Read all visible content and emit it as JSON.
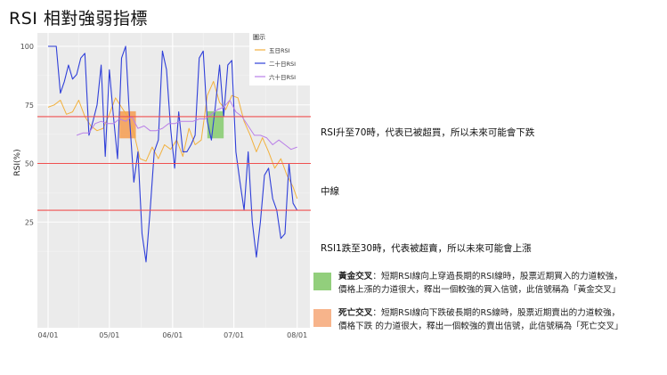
{
  "title": "RSI 相對強弱指標",
  "chart_data": {
    "type": "line",
    "title": "",
    "xlabel": "",
    "ylabel": "RSI(%)",
    "ylim": [
      0,
      100
    ],
    "yticks": [
      25,
      50,
      75,
      100
    ],
    "x_tick_labels": [
      "04/01",
      "05/01",
      "06/01",
      "07/01",
      "08/01"
    ],
    "x_range": [
      "2019-04-01",
      "2019-08-02"
    ],
    "grid": true,
    "legend": {
      "title": "圖示",
      "position": "top-right-inside"
    },
    "reference_lines": [
      {
        "y": 70,
        "label": "RSI升至70時，代表已被超買，所以未來可能會下跌",
        "color": "#f05050"
      },
      {
        "y": 50,
        "label": "中線",
        "color": "#f05050"
      },
      {
        "y": 30,
        "label": "RSI1跌至30時，代表被超賣，所以未來可能會上漲",
        "color": "#f05050"
      }
    ],
    "highlights": [
      {
        "x0": "2019-05-06",
        "x1": "2019-05-14",
        "y0": 63,
        "y1": 70,
        "color": "#f4a460"
      },
      {
        "x0": "2019-06-18",
        "x1": "2019-06-26",
        "y0": 63,
        "y1": 70,
        "color": "#8fcf7a"
      }
    ],
    "series": [
      {
        "name": "五日RSI",
        "color": "#f2b13e",
        "x": [
          "2019-04-01",
          "2019-04-04",
          "2019-04-07",
          "2019-04-10",
          "2019-04-13",
          "2019-04-16",
          "2019-04-19",
          "2019-04-22",
          "2019-04-25",
          "2019-04-28",
          "2019-05-01",
          "2019-05-04",
          "2019-05-07",
          "2019-05-10",
          "2019-05-13",
          "2019-05-16",
          "2019-05-19",
          "2019-05-22",
          "2019-05-25",
          "2019-05-28",
          "2019-05-31",
          "2019-06-03",
          "2019-06-06",
          "2019-06-09",
          "2019-06-12",
          "2019-06-15",
          "2019-06-18",
          "2019-06-21",
          "2019-06-24",
          "2019-06-27",
          "2019-06-30",
          "2019-07-03",
          "2019-07-06",
          "2019-07-09",
          "2019-07-12",
          "2019-07-15",
          "2019-07-18",
          "2019-07-21",
          "2019-07-24",
          "2019-07-27",
          "2019-07-30",
          "2019-08-01"
        ],
        "values": [
          74,
          75,
          77,
          71,
          72,
          77,
          70,
          66,
          64,
          65,
          71,
          78,
          74,
          70,
          63,
          52,
          51,
          57,
          52,
          58,
          56,
          60,
          53,
          65,
          58,
          60,
          79,
          85,
          76,
          73,
          79,
          78,
          68,
          62,
          55,
          61,
          55,
          48,
          52,
          45,
          40,
          35
        ]
      },
      {
        "name": "二十日RSI",
        "color": "#2f3fd9",
        "x": [
          "2019-04-01",
          "2019-04-03",
          "2019-04-05",
          "2019-04-07",
          "2019-04-09",
          "2019-04-11",
          "2019-04-13",
          "2019-04-15",
          "2019-04-17",
          "2019-04-19",
          "2019-04-21",
          "2019-04-23",
          "2019-04-25",
          "2019-04-27",
          "2019-04-29",
          "2019-05-01",
          "2019-05-03",
          "2019-05-05",
          "2019-05-07",
          "2019-05-09",
          "2019-05-11",
          "2019-05-13",
          "2019-05-15",
          "2019-05-17",
          "2019-05-19",
          "2019-05-21",
          "2019-05-23",
          "2019-05-25",
          "2019-05-27",
          "2019-05-29",
          "2019-05-31",
          "2019-06-02",
          "2019-06-04",
          "2019-06-06",
          "2019-06-08",
          "2019-06-10",
          "2019-06-12",
          "2019-06-14",
          "2019-06-16",
          "2019-06-18",
          "2019-06-20",
          "2019-06-22",
          "2019-06-24",
          "2019-06-26",
          "2019-06-28",
          "2019-06-30",
          "2019-07-02",
          "2019-07-04",
          "2019-07-06",
          "2019-07-08",
          "2019-07-10",
          "2019-07-12",
          "2019-07-14",
          "2019-07-16",
          "2019-07-18",
          "2019-07-20",
          "2019-07-22",
          "2019-07-24",
          "2019-07-26",
          "2019-07-28",
          "2019-07-30",
          "2019-08-01"
        ],
        "values": [
          100,
          100,
          100,
          80,
          85,
          92,
          86,
          88,
          95,
          97,
          62,
          68,
          75,
          92,
          53,
          90,
          70,
          52,
          95,
          100,
          68,
          42,
          55,
          20,
          8,
          30,
          55,
          60,
          98,
          90,
          65,
          48,
          72,
          55,
          55,
          58,
          62,
          95,
          98,
          68,
          60,
          75,
          92,
          70,
          92,
          94,
          55,
          42,
          30,
          55,
          25,
          10,
          25,
          45,
          48,
          35,
          30,
          18,
          20,
          50,
          33,
          30
        ]
      },
      {
        "name": "六十日RSI",
        "color": "#b97fe8",
        "x": [
          "2019-04-15",
          "2019-04-18",
          "2019-04-21",
          "2019-04-24",
          "2019-04-27",
          "2019-04-30",
          "2019-05-03",
          "2019-05-06",
          "2019-05-09",
          "2019-05-12",
          "2019-05-15",
          "2019-05-18",
          "2019-05-21",
          "2019-05-24",
          "2019-05-27",
          "2019-05-30",
          "2019-06-02",
          "2019-06-05",
          "2019-06-08",
          "2019-06-11",
          "2019-06-14",
          "2019-06-17",
          "2019-06-20",
          "2019-06-23",
          "2019-06-26",
          "2019-06-29",
          "2019-07-02",
          "2019-07-05",
          "2019-07-08",
          "2019-07-11",
          "2019-07-14",
          "2019-07-17",
          "2019-07-20",
          "2019-07-23",
          "2019-07-26",
          "2019-07-29",
          "2019-08-01"
        ],
        "values": [
          62,
          63,
          63,
          67,
          68,
          67,
          67,
          69,
          68,
          70,
          65,
          66,
          64,
          64,
          65,
          67,
          67,
          68,
          68,
          68,
          69,
          69,
          71,
          73,
          74,
          77,
          72,
          70,
          66,
          62,
          62,
          61,
          58,
          60,
          58,
          56,
          57
        ]
      }
    ]
  },
  "notes": [
    {
      "term": "黃金交叉",
      "line1": "：短期RSI線向上穿過長期的RSI線時，股票近期買入的力道較強，",
      "line2": "價格上漲的力道很大，釋出一個較強的買入信號，此信號稱為「黃金交叉」",
      "color": "#92cf7c"
    },
    {
      "term": "死亡交叉",
      "line1": "：短期RSI線向下跌破長期的RS線時，股票近期賣出的力道較強，",
      "line2": "價格下跌 的力道很大，釋出一個較強的賣出信號，此信號稱為「死亡交叉」",
      "color": "#f7b48b"
    }
  ]
}
